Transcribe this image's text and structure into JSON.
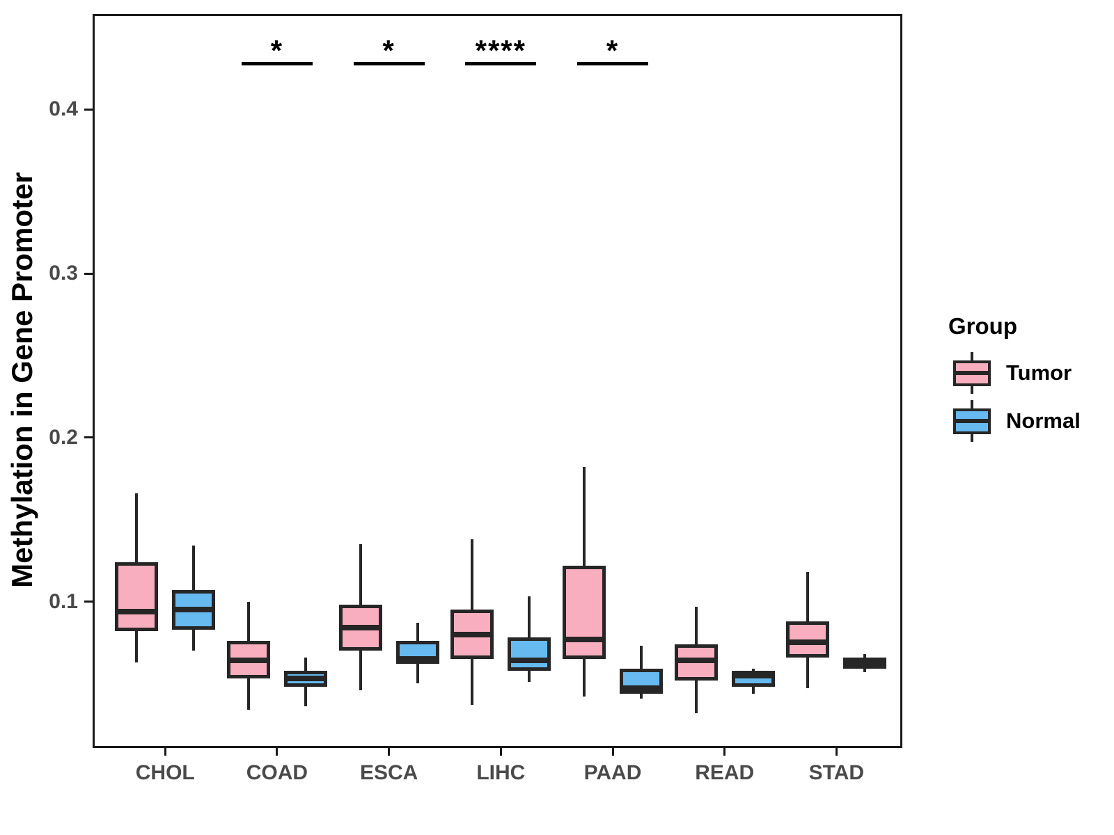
{
  "chart_data": {
    "type": "boxplot",
    "title": "",
    "xlabel": "",
    "ylabel": "Methylation in Gene Promoter",
    "categories": [
      "CHOL",
      "COAD",
      "ESCA",
      "LIHC",
      "PAAD",
      "READ",
      "STAD"
    ],
    "ylim": [
      0.012,
      0.457
    ],
    "yticks": [
      0.1,
      0.2,
      0.3,
      0.4
    ],
    "ytick_labels": [
      "0.1",
      "0.2",
      "0.3",
      "0.4"
    ],
    "grid": false,
    "box_outline_color": "#262626",
    "legend": {
      "title": "Group",
      "position": "right",
      "entries": [
        {
          "label": "Tumor",
          "color": "#F8AEBE"
        },
        {
          "label": "Normal",
          "color": "#67BAF0"
        }
      ]
    },
    "series": [
      {
        "name": "Tumor",
        "color": "#F8AEBE",
        "boxes": [
          {
            "category": "CHOL",
            "min": 0.063,
            "q1": 0.082,
            "median": 0.094,
            "q3": 0.124,
            "max": 0.166
          },
          {
            "category": "COAD",
            "min": 0.034,
            "q1": 0.053,
            "median": 0.064,
            "q3": 0.076,
            "max": 0.1
          },
          {
            "category": "ESCA",
            "min": 0.046,
            "q1": 0.07,
            "median": 0.084,
            "q3": 0.098,
            "max": 0.135
          },
          {
            "category": "LIHC",
            "min": 0.037,
            "q1": 0.065,
            "median": 0.08,
            "q3": 0.095,
            "max": 0.138
          },
          {
            "category": "PAAD",
            "min": 0.042,
            "q1": 0.065,
            "median": 0.077,
            "q3": 0.122,
            "max": 0.182
          },
          {
            "category": "READ",
            "min": 0.032,
            "q1": 0.052,
            "median": 0.064,
            "q3": 0.074,
            "max": 0.097
          },
          {
            "category": "STAD",
            "min": 0.047,
            "q1": 0.066,
            "median": 0.075,
            "q3": 0.088,
            "max": 0.118
          }
        ]
      },
      {
        "name": "Normal",
        "color": "#67BAF0",
        "boxes": [
          {
            "category": "CHOL",
            "min": 0.07,
            "q1": 0.083,
            "median": 0.095,
            "q3": 0.107,
            "max": 0.134
          },
          {
            "category": "COAD",
            "min": 0.036,
            "q1": 0.048,
            "median": 0.053,
            "q3": 0.058,
            "max": 0.066
          },
          {
            "category": "ESCA",
            "min": 0.05,
            "q1": 0.062,
            "median": 0.065,
            "q3": 0.076,
            "max": 0.087
          },
          {
            "category": "LIHC",
            "min": 0.051,
            "q1": 0.058,
            "median": 0.064,
            "q3": 0.078,
            "max": 0.103
          },
          {
            "category": "PAAD",
            "min": 0.041,
            "q1": 0.044,
            "median": 0.047,
            "q3": 0.059,
            "max": 0.073
          },
          {
            "category": "READ",
            "min": 0.044,
            "q1": 0.048,
            "median": 0.055,
            "q3": 0.058,
            "max": 0.059
          },
          {
            "category": "STAD",
            "min": 0.057,
            "q1": 0.059,
            "median": 0.0625,
            "q3": 0.066,
            "max": 0.068
          }
        ]
      }
    ],
    "significance": [
      {
        "category": "COAD",
        "label": "*"
      },
      {
        "category": "ESCA",
        "label": "*"
      },
      {
        "category": "LIHC",
        "label": "****"
      },
      {
        "category": "PAAD",
        "label": "*"
      }
    ],
    "sig_bar_y_value": 0.428
  }
}
